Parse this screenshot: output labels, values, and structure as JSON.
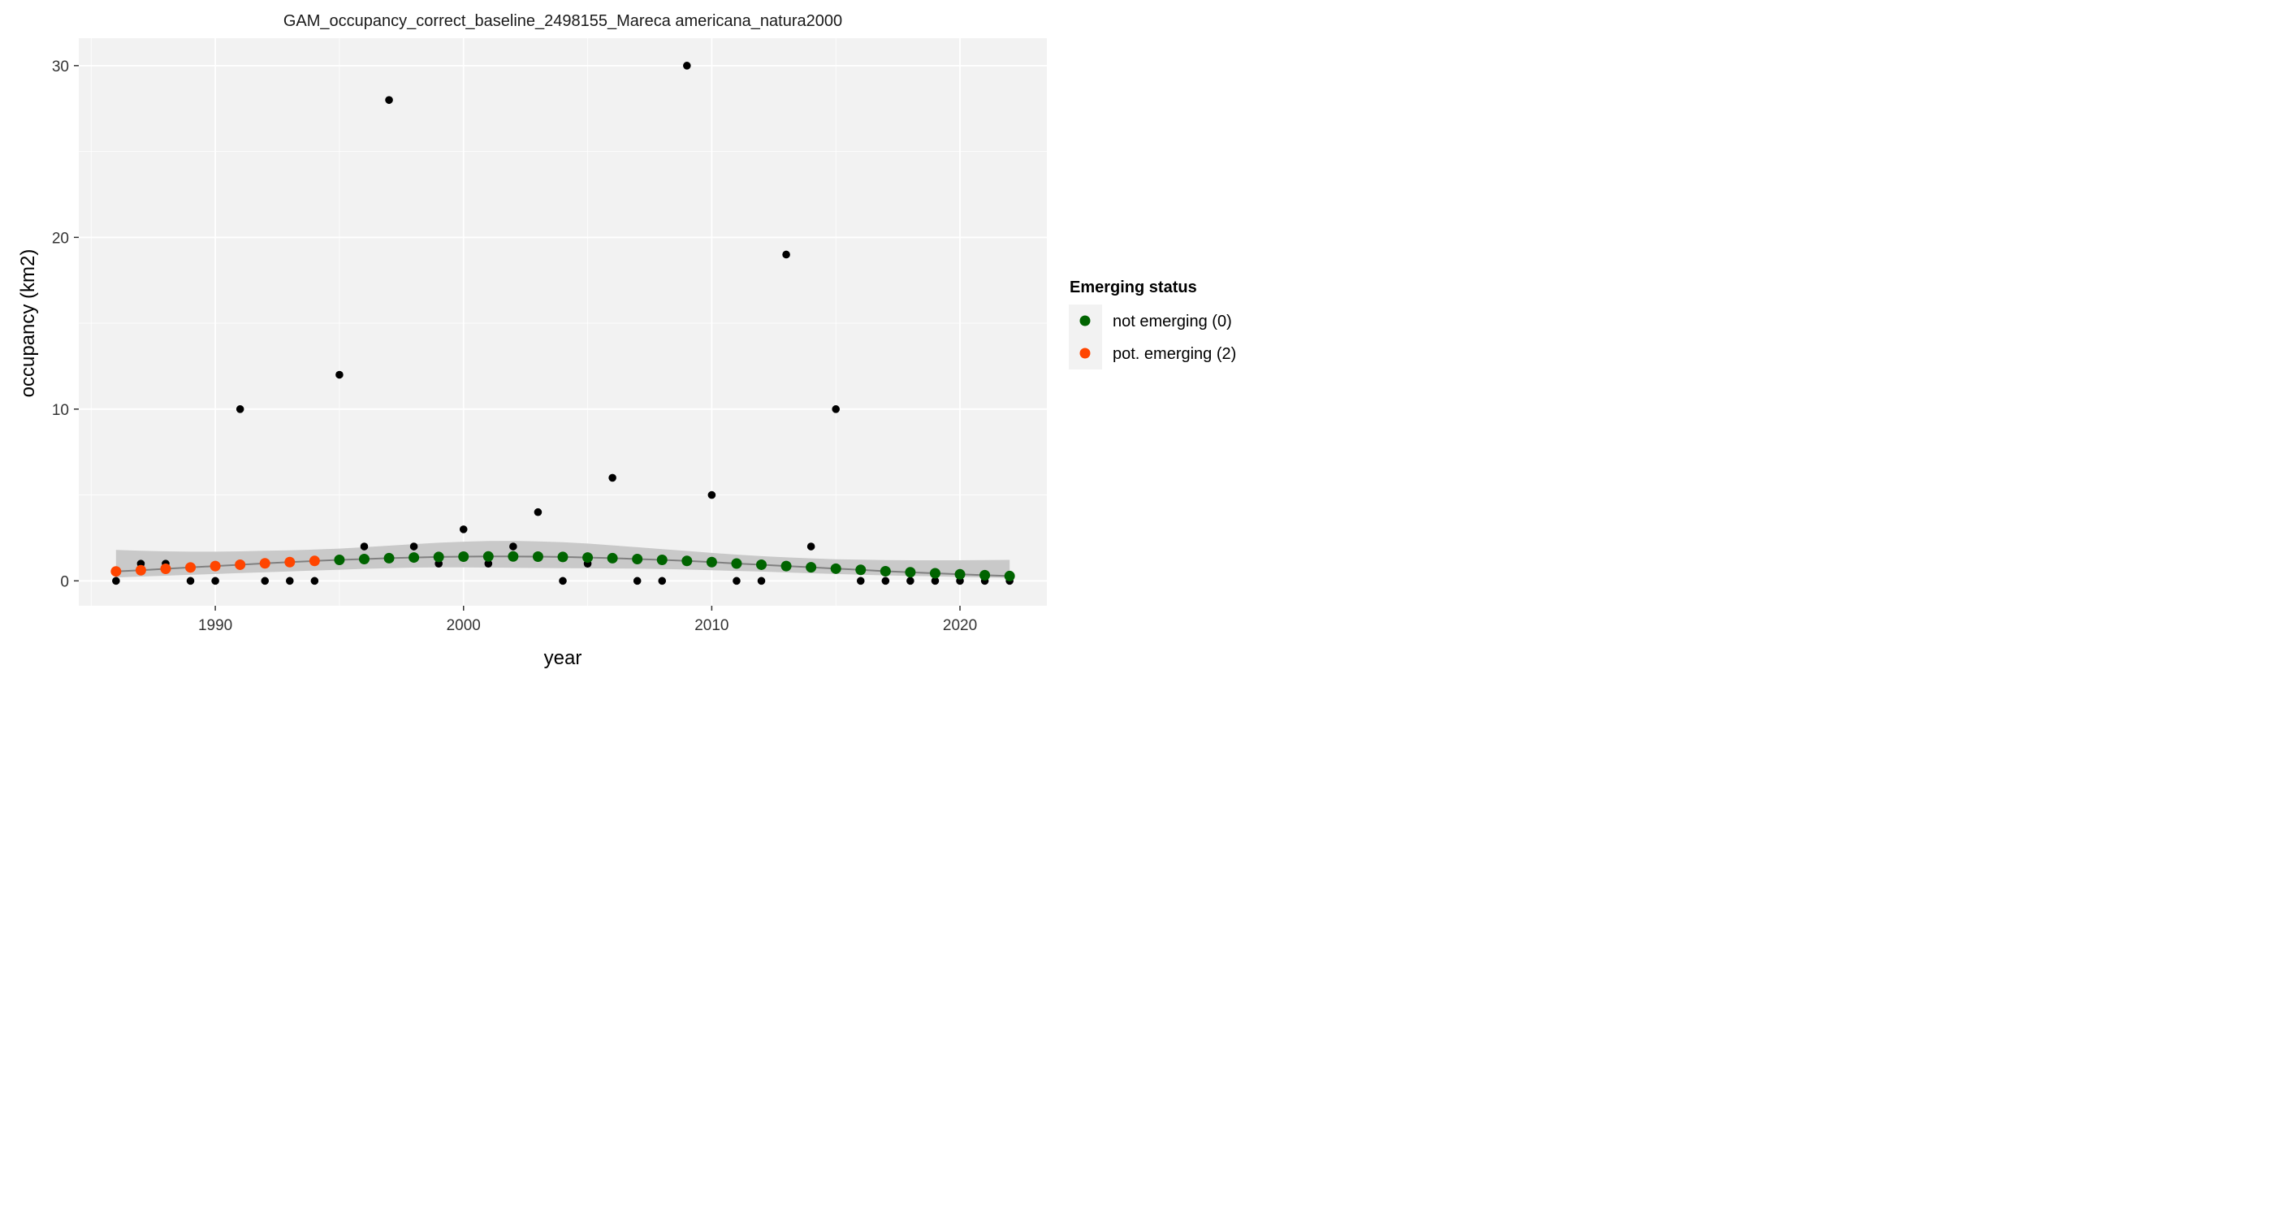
{
  "chart_data": {
    "type": "scatter",
    "title": "GAM_occupancy_correct_baseline_2498155_Mareca americana_natura2000",
    "xlabel": "year",
    "ylabel": "occupancy (km2)",
    "xlim": [
      1984.5,
      2023.5
    ],
    "ylim": [
      -1.45,
      31.6
    ],
    "x_ticks": [
      1990,
      2000,
      2010,
      2020
    ],
    "y_ticks": [
      0,
      10,
      20,
      30
    ],
    "grid": true,
    "background": "#f2f2f2",
    "legend": {
      "title": "Emerging status",
      "position": "right",
      "entries": [
        {
          "label": "not emerging (0)",
          "color": "#006400"
        },
        {
          "label": "pot. emerging (2)",
          "color": "#ff4500"
        }
      ]
    },
    "observed": {
      "color": "#000000",
      "x": [
        1986,
        1987,
        1988,
        1989,
        1990,
        1991,
        1992,
        1993,
        1994,
        1995,
        1996,
        1997,
        1998,
        1999,
        2000,
        2001,
        2002,
        2003,
        2004,
        2005,
        2006,
        2007,
        2008,
        2009,
        2010,
        2011,
        2012,
        2013,
        2014,
        2015,
        2016,
        2017,
        2018,
        2019,
        2020,
        2021,
        2022
      ],
      "y": [
        0,
        1,
        1,
        0,
        0,
        10,
        0,
        0,
        0,
        12,
        2,
        28,
        2,
        1,
        3,
        1,
        2,
        4,
        0,
        1,
        6,
        0,
        0,
        30,
        5,
        0,
        0,
        19,
        2,
        10,
        0,
        0,
        0,
        0,
        0,
        0,
        0
      ]
    },
    "fitted": {
      "line_color": "#808080",
      "ribbon_color": "#c6c6c6",
      "x": [
        1986,
        1987,
        1988,
        1989,
        1990,
        1991,
        1992,
        1993,
        1994,
        1995,
        1996,
        1997,
        1998,
        1999,
        2000,
        2001,
        2002,
        2003,
        2004,
        2005,
        2006,
        2007,
        2008,
        2009,
        2010,
        2011,
        2012,
        2013,
        2014,
        2015,
        2016,
        2017,
        2018,
        2019,
        2020,
        2021,
        2022
      ],
      "y": [
        0.55,
        0.62,
        0.7,
        0.78,
        0.86,
        0.94,
        1.02,
        1.09,
        1.16,
        1.22,
        1.27,
        1.32,
        1.36,
        1.39,
        1.41,
        1.42,
        1.42,
        1.41,
        1.39,
        1.36,
        1.32,
        1.27,
        1.22,
        1.16,
        1.09,
        1.01,
        0.94,
        0.86,
        0.79,
        0.71,
        0.64,
        0.56,
        0.5,
        0.44,
        0.38,
        0.33,
        0.28
      ],
      "lower": [
        0.2,
        0.25,
        0.3,
        0.35,
        0.4,
        0.45,
        0.5,
        0.55,
        0.6,
        0.65,
        0.7,
        0.74,
        0.77,
        0.78,
        0.78,
        0.77,
        0.76,
        0.75,
        0.74,
        0.73,
        0.72,
        0.71,
        0.69,
        0.66,
        0.62,
        0.58,
        0.54,
        0.49,
        0.44,
        0.4,
        0.36,
        0.32,
        0.29,
        0.26,
        0.23,
        0.2,
        0.17
      ],
      "upper": [
        1.8,
        1.75,
        1.72,
        1.7,
        1.7,
        1.72,
        1.75,
        1.78,
        1.82,
        1.88,
        1.96,
        2.05,
        2.14,
        2.22,
        2.28,
        2.32,
        2.33,
        2.3,
        2.25,
        2.17,
        2.07,
        1.96,
        1.85,
        1.74,
        1.63,
        1.53,
        1.44,
        1.37,
        1.31,
        1.26,
        1.23,
        1.21,
        1.2,
        1.2,
        1.2,
        1.21,
        1.22
      ],
      "status": [
        2,
        2,
        2,
        2,
        2,
        2,
        2,
        2,
        2,
        0,
        0,
        0,
        0,
        0,
        0,
        0,
        0,
        0,
        0,
        0,
        0,
        0,
        0,
        0,
        0,
        0,
        0,
        0,
        0,
        0,
        0,
        0,
        0,
        0,
        0,
        0,
        0
      ]
    }
  }
}
